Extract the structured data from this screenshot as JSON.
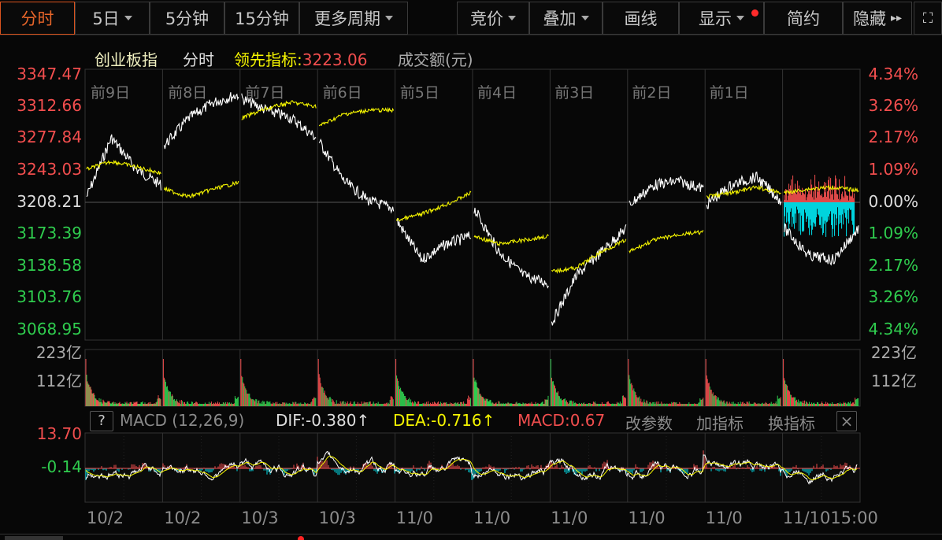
{
  "toolbar": {
    "left": [
      {
        "label": "分时",
        "active": true
      },
      {
        "label": "5日",
        "dropdown": true
      },
      {
        "label": "5分钟"
      },
      {
        "label": "15分钟"
      },
      {
        "label": "更多周期",
        "dropdown": true
      }
    ],
    "right": [
      {
        "label": "竞价",
        "dropdown": true
      },
      {
        "label": "叠加",
        "dropdown": true
      },
      {
        "label": "画线"
      },
      {
        "label": "显示",
        "dropdown": true,
        "badge": true
      },
      {
        "label": "简约"
      },
      {
        "label": "隐藏",
        "icon": "double-chevron-right-icon"
      }
    ],
    "expand_icon": "fullscreen-icon"
  },
  "header": {
    "name": "创业板指",
    "period": "分时",
    "lead_label": "领先指标:",
    "lead_value": "3223.06",
    "volume_label": "成交额(元)"
  },
  "price_axis": {
    "left": [
      "3347.47",
      "3312.66",
      "3277.84",
      "3243.03",
      "3208.21",
      "3173.39",
      "3138.58",
      "3103.76",
      "3068.95"
    ],
    "right": [
      "4.34%",
      "3.26%",
      "2.17%",
      "1.09%",
      "0.00%",
      "1.09%",
      "2.17%",
      "3.26%",
      "4.34%"
    ]
  },
  "days": [
    "前9日",
    "前8日",
    "前7日",
    "前6日",
    "前5日",
    "前4日",
    "前3日",
    "前2日",
    "前1日"
  ],
  "volume_axis": [
    "223亿",
    "112亿",
    "223亿",
    "112亿"
  ],
  "macd": {
    "help": "?",
    "name": "MACD (12,26,9)",
    "dif": "DIF:-0.380↑",
    "dea": "DEA:-0.716↑",
    "macd": "MACD:0.67",
    "change_params": "改参数",
    "add_indicator": "加指标",
    "switch_indicator": "换指标",
    "close": "×",
    "axis": [
      "13.70",
      "-0.14"
    ]
  },
  "dates": [
    "10/2",
    "10/2",
    "10/3",
    "10/3",
    "11/0",
    "11/0",
    "11/0",
    "11/0",
    "11/0",
    "11/1015:00"
  ],
  "colors": {
    "up": "#f24e4e",
    "down": "#2fcc4e",
    "macd_neg": "#00e5f0",
    "price": "#ffffff",
    "avg": "#f5f500",
    "active": "#e8662a"
  }
}
